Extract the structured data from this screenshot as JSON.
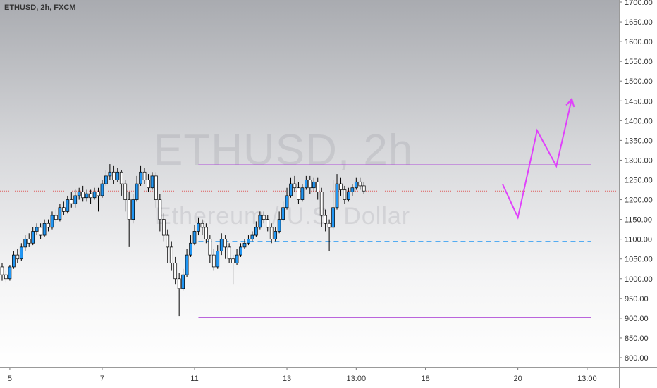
{
  "symbol_label": "ETHUSD, 2h, FXCM",
  "watermark": {
    "title": "ETHUSD, 2h",
    "subtitle": "Ethereum / U.S. Dollar"
  },
  "colors": {
    "up": "#2196f3",
    "down": "#ffffff",
    "wick": "#000000",
    "drawing": "#e040fb",
    "range": "#b04fd8",
    "dashed": "#2196f3",
    "price_line": "#e05a5a"
  },
  "chart_data": {
    "type": "candlestick",
    "title": "ETHUSD, 2h, FXCM",
    "xlabel": "",
    "ylabel": "",
    "ylim": [
      787,
      1720
    ],
    "y_ticks": [
      800,
      850,
      900,
      950,
      1000,
      1050,
      1100,
      1150,
      1200,
      1250,
      1300,
      1350,
      1400,
      1450,
      1500,
      1550,
      1600,
      1650,
      1700
    ],
    "y_tick_labels": [
      "800.00",
      "850.00",
      "900.00",
      "950.00",
      "1000.00",
      "1050.00",
      "1100.00",
      "1150.00",
      "1200.00",
      "1250.00",
      "1300.00",
      "1350.00",
      "1400.00",
      "1450.00",
      "1500.00",
      "1550.00",
      "1600.00",
      "1650.00",
      "1700.00"
    ],
    "x_ticks": [
      {
        "label": "5",
        "idx": 2
      },
      {
        "label": "7",
        "idx": 26
      },
      {
        "label": "11",
        "idx": 50
      },
      {
        "label": "13",
        "idx": 74
      },
      {
        "label": "13:00",
        "idx": 92
      },
      {
        "label": "18",
        "idx": 110
      },
      {
        "label": "20",
        "idx": 134
      },
      {
        "label": "13:00",
        "idx": 152
      }
    ],
    "last_price": 1222,
    "candles": [
      [
        1030,
        1010,
        995,
        1040
      ],
      [
        1010,
        1000,
        990,
        1020
      ],
      [
        1000,
        1030,
        995,
        1035
      ],
      [
        1030,
        1060,
        1025,
        1070
      ],
      [
        1060,
        1050,
        1040,
        1075
      ],
      [
        1050,
        1080,
        1045,
        1090
      ],
      [
        1080,
        1100,
        1070,
        1110
      ],
      [
        1100,
        1090,
        1080,
        1115
      ],
      [
        1090,
        1120,
        1085,
        1130
      ],
      [
        1120,
        1130,
        1110,
        1140
      ],
      [
        1130,
        1110,
        1100,
        1140
      ],
      [
        1110,
        1140,
        1105,
        1150
      ],
      [
        1140,
        1130,
        1120,
        1150
      ],
      [
        1130,
        1160,
        1125,
        1170
      ],
      [
        1160,
        1150,
        1140,
        1175
      ],
      [
        1150,
        1180,
        1145,
        1190
      ],
      [
        1180,
        1170,
        1160,
        1195
      ],
      [
        1170,
        1200,
        1165,
        1210
      ],
      [
        1200,
        1190,
        1180,
        1220
      ],
      [
        1190,
        1210,
        1180,
        1225
      ],
      [
        1210,
        1220,
        1200,
        1230
      ],
      [
        1220,
        1205,
        1195,
        1235
      ],
      [
        1205,
        1215,
        1195,
        1225
      ],
      [
        1215,
        1205,
        1190,
        1225
      ],
      [
        1205,
        1220,
        1200,
        1230
      ],
      [
        1220,
        1210,
        1170,
        1230
      ],
      [
        1210,
        1240,
        1205,
        1250
      ],
      [
        1240,
        1260,
        1235,
        1275
      ],
      [
        1260,
        1270,
        1250,
        1290
      ],
      [
        1270,
        1250,
        1240,
        1285
      ],
      [
        1250,
        1270,
        1245,
        1280
      ],
      [
        1270,
        1240,
        1210,
        1275
      ],
      [
        1240,
        1200,
        1170,
        1250
      ],
      [
        1200,
        1150,
        1080,
        1220
      ],
      [
        1150,
        1200,
        1140,
        1215
      ],
      [
        1200,
        1240,
        1195,
        1260
      ],
      [
        1240,
        1270,
        1235,
        1285
      ],
      [
        1270,
        1250,
        1240,
        1280
      ],
      [
        1250,
        1230,
        1220,
        1265
      ],
      [
        1230,
        1260,
        1225,
        1270
      ],
      [
        1260,
        1200,
        1180,
        1270
      ],
      [
        1200,
        1150,
        1120,
        1215
      ],
      [
        1150,
        1110,
        1095,
        1165
      ],
      [
        1110,
        1080,
        1040,
        1125
      ],
      [
        1080,
        1040,
        1020,
        1095
      ],
      [
        1040,
        1000,
        985,
        1055
      ],
      [
        1000,
        975,
        905,
        1015
      ],
      [
        975,
        1010,
        970,
        1025
      ],
      [
        1010,
        1060,
        1005,
        1075
      ],
      [
        1060,
        1090,
        1055,
        1110
      ],
      [
        1090,
        1120,
        1085,
        1135
      ],
      [
        1120,
        1140,
        1110,
        1155
      ],
      [
        1140,
        1130,
        1110,
        1150
      ],
      [
        1130,
        1100,
        1090,
        1140
      ],
      [
        1100,
        1060,
        1040,
        1110
      ],
      [
        1060,
        1030,
        1020,
        1075
      ],
      [
        1030,
        1070,
        1025,
        1085
      ],
      [
        1070,
        1100,
        1060,
        1115
      ],
      [
        1100,
        1080,
        1050,
        1110
      ],
      [
        1080,
        1050,
        1040,
        1090
      ],
      [
        1050,
        1040,
        985,
        1060
      ],
      [
        1040,
        1060,
        1035,
        1075
      ],
      [
        1060,
        1080,
        1055,
        1090
      ],
      [
        1080,
        1090,
        1075,
        1100
      ],
      [
        1090,
        1100,
        1085,
        1110
      ],
      [
        1100,
        1110,
        1095,
        1120
      ],
      [
        1110,
        1130,
        1105,
        1145
      ],
      [
        1130,
        1160,
        1125,
        1170
      ],
      [
        1160,
        1150,
        1140,
        1170
      ],
      [
        1150,
        1130,
        1120,
        1160
      ],
      [
        1130,
        1100,
        1090,
        1140
      ],
      [
        1100,
        1120,
        1095,
        1130
      ],
      [
        1120,
        1150,
        1115,
        1170
      ],
      [
        1150,
        1180,
        1145,
        1195
      ],
      [
        1180,
        1210,
        1175,
        1230
      ],
      [
        1210,
        1240,
        1205,
        1255
      ],
      [
        1240,
        1230,
        1220,
        1260
      ],
      [
        1230,
        1200,
        1190,
        1245
      ],
      [
        1200,
        1230,
        1195,
        1240
      ],
      [
        1230,
        1250,
        1225,
        1260
      ],
      [
        1250,
        1230,
        1215,
        1260
      ],
      [
        1230,
        1245,
        1220,
        1255
      ],
      [
        1245,
        1220,
        1200,
        1255
      ],
      [
        1220,
        1160,
        1130,
        1230
      ],
      [
        1160,
        1140,
        1120,
        1175
      ],
      [
        1140,
        1130,
        1070,
        1150
      ],
      [
        1130,
        1180,
        1125,
        1250
      ],
      [
        1180,
        1240,
        1175,
        1265
      ],
      [
        1240,
        1225,
        1210,
        1255
      ],
      [
        1225,
        1200,
        1190,
        1235
      ],
      [
        1200,
        1220,
        1195,
        1230
      ],
      [
        1220,
        1230,
        1210,
        1240
      ],
      [
        1230,
        1245,
        1225,
        1255
      ],
      [
        1245,
        1235,
        1225,
        1255
      ],
      [
        1235,
        1222,
        1215,
        1245
      ]
    ],
    "range_lines": [
      {
        "from_idx": 51,
        "to_idx": 153,
        "price": 1288
      },
      {
        "from_idx": 51,
        "to_idx": 153,
        "price": 902
      }
    ],
    "dashed_line": {
      "from_idx": 51,
      "to_idx": 153,
      "price": 1094
    },
    "projection_path": [
      {
        "idx": 130,
        "price": 1240
      },
      {
        "idx": 134,
        "price": 1155
      },
      {
        "idx": 139,
        "price": 1375
      },
      {
        "idx": 144,
        "price": 1285
      },
      {
        "idx": 148,
        "price": 1455
      }
    ]
  }
}
